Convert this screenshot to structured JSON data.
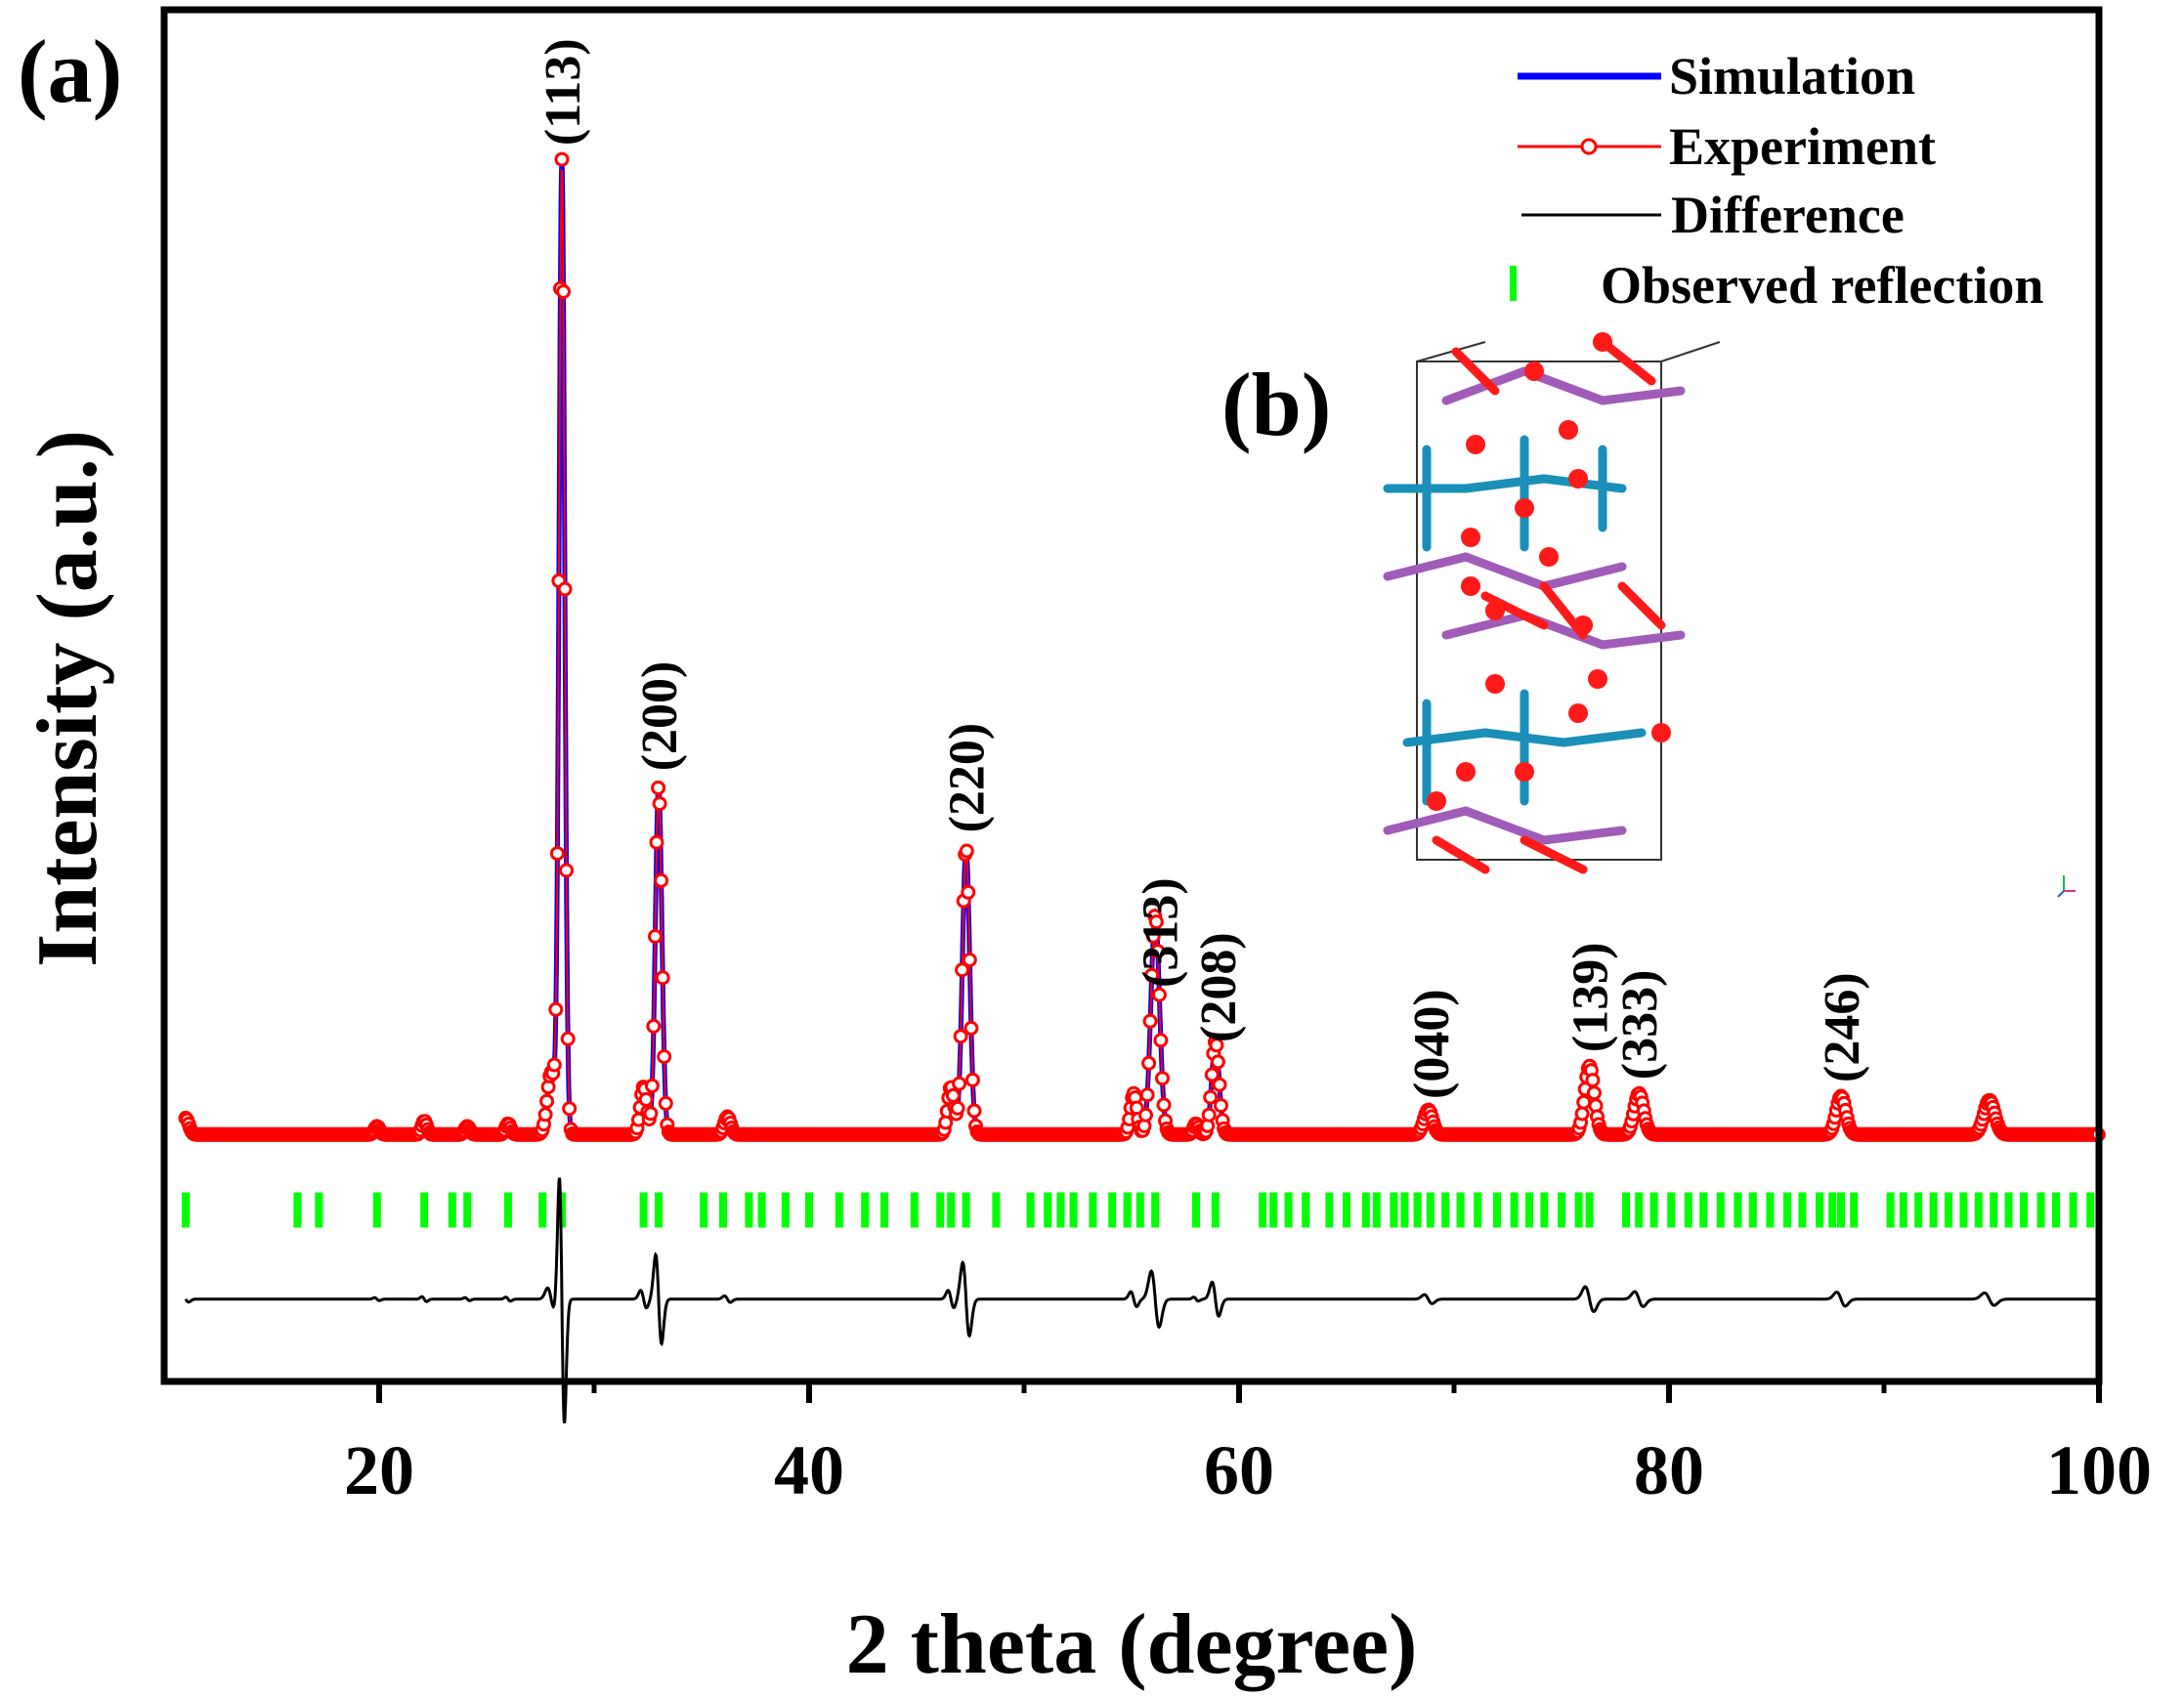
{
  "panel_labels": {
    "a": "(a)",
    "b": "(b)"
  },
  "colors": {
    "simulation": "#0000ff",
    "experiment": "#ff0000",
    "difference": "#000000",
    "reflection": "#00ff00",
    "atom_red": "#ff1a1a",
    "atom_blue": "#1a8fb8",
    "atom_purple": "#a05cb8"
  },
  "chart_data": {
    "type": "line",
    "xlabel": "2 theta (degree)",
    "ylabel": "Intensity (a.u.)",
    "xlim": [
      10,
      100
    ],
    "ylim": [
      0,
      1
    ],
    "x_ticks": [
      20,
      40,
      60,
      80,
      100
    ],
    "x_minor_ticks": [
      30,
      50,
      70,
      90
    ],
    "grid": false,
    "legend_position": "top-right",
    "legend": [
      {
        "name": "Simulation",
        "style": "line",
        "color": "#0000ff"
      },
      {
        "name": "Experiment",
        "style": "line-circle",
        "color": "#ff0000"
      },
      {
        "name": "Difference",
        "style": "line",
        "color": "#000000"
      },
      {
        "name": "Observed reflection",
        "style": "tick",
        "color": "#00ff00"
      }
    ],
    "baseline": 0.18,
    "difference_baseline": 0.06,
    "reflection_row": 0.125,
    "peaks": [
      {
        "x": 11.0,
        "height": 0.012,
        "width": 0.15
      },
      {
        "x": 19.9,
        "height": 0.006,
        "width": 0.12
      },
      {
        "x": 22.1,
        "height": 0.01,
        "width": 0.12
      },
      {
        "x": 24.1,
        "height": 0.006,
        "width": 0.12
      },
      {
        "x": 26.0,
        "height": 0.008,
        "width": 0.12
      },
      {
        "x": 28.0,
        "height": 0.045,
        "width": 0.18
      },
      {
        "x": 28.5,
        "height": 0.71,
        "width": 0.13
      },
      {
        "x": 32.3,
        "height": 0.035,
        "width": 0.15
      },
      {
        "x": 33.0,
        "height": 0.255,
        "width": 0.15
      },
      {
        "x": 36.2,
        "height": 0.013,
        "width": 0.15
      },
      {
        "x": 46.6,
        "height": 0.035,
        "width": 0.15
      },
      {
        "x": 47.3,
        "height": 0.21,
        "width": 0.17
      },
      {
        "x": 55.1,
        "height": 0.03,
        "width": 0.15
      },
      {
        "x": 56.1,
        "height": 0.16,
        "width": 0.2
      },
      {
        "x": 58.0,
        "height": 0.008,
        "width": 0.12
      },
      {
        "x": 58.9,
        "height": 0.068,
        "width": 0.17
      },
      {
        "x": 68.8,
        "height": 0.018,
        "width": 0.2
      },
      {
        "x": 76.3,
        "height": 0.05,
        "width": 0.22
      },
      {
        "x": 78.6,
        "height": 0.03,
        "width": 0.22
      },
      {
        "x": 88.0,
        "height": 0.028,
        "width": 0.22
      },
      {
        "x": 94.9,
        "height": 0.025,
        "width": 0.25
      }
    ],
    "peak_labels": [
      {
        "label": "(113)",
        "x": 28.5
      },
      {
        "label": "(200)",
        "x": 33.0
      },
      {
        "label": "(220)",
        "x": 47.3
      },
      {
        "label": "(313)",
        "x": 56.3
      },
      {
        "label": "(208)",
        "x": 59.0
      },
      {
        "label": "(040)",
        "x": 68.9
      },
      {
        "label": "(139)",
        "x": 76.3
      },
      {
        "label": "(333)",
        "x": 78.6
      },
      {
        "label": "(246)",
        "x": 88.0
      }
    ],
    "reflections": [
      11.0,
      16.2,
      17.2,
      19.9,
      22.1,
      23.4,
      24.1,
      26.0,
      27.6,
      28.5,
      32.3,
      33.0,
      35.1,
      36.0,
      37.2,
      37.8,
      38.9,
      40.0,
      41.4,
      42.6,
      43.5,
      44.9,
      46.1,
      46.6,
      47.3,
      48.7,
      50.3,
      51.1,
      51.7,
      52.3,
      53.2,
      54.1,
      54.8,
      55.4,
      56.1,
      58.0,
      58.9,
      61.1,
      61.6,
      62.3,
      63.1,
      64.2,
      65.0,
      65.9,
      66.4,
      67.2,
      67.7,
      68.3,
      68.9,
      69.6,
      70.3,
      71.1,
      72.0,
      72.8,
      73.5,
      74.2,
      75.0,
      75.8,
      76.3,
      78.0,
      78.6,
      79.3,
      80.1,
      80.9,
      81.6,
      82.4,
      83.2,
      83.9,
      84.7,
      85.5,
      86.2,
      87.0,
      87.6,
      88.0,
      88.6,
      90.3,
      90.9,
      91.6,
      92.3,
      93.0,
      93.7,
      94.4,
      95.1,
      95.8,
      96.5,
      97.3,
      98.0,
      98.8,
      99.6
    ]
  }
}
